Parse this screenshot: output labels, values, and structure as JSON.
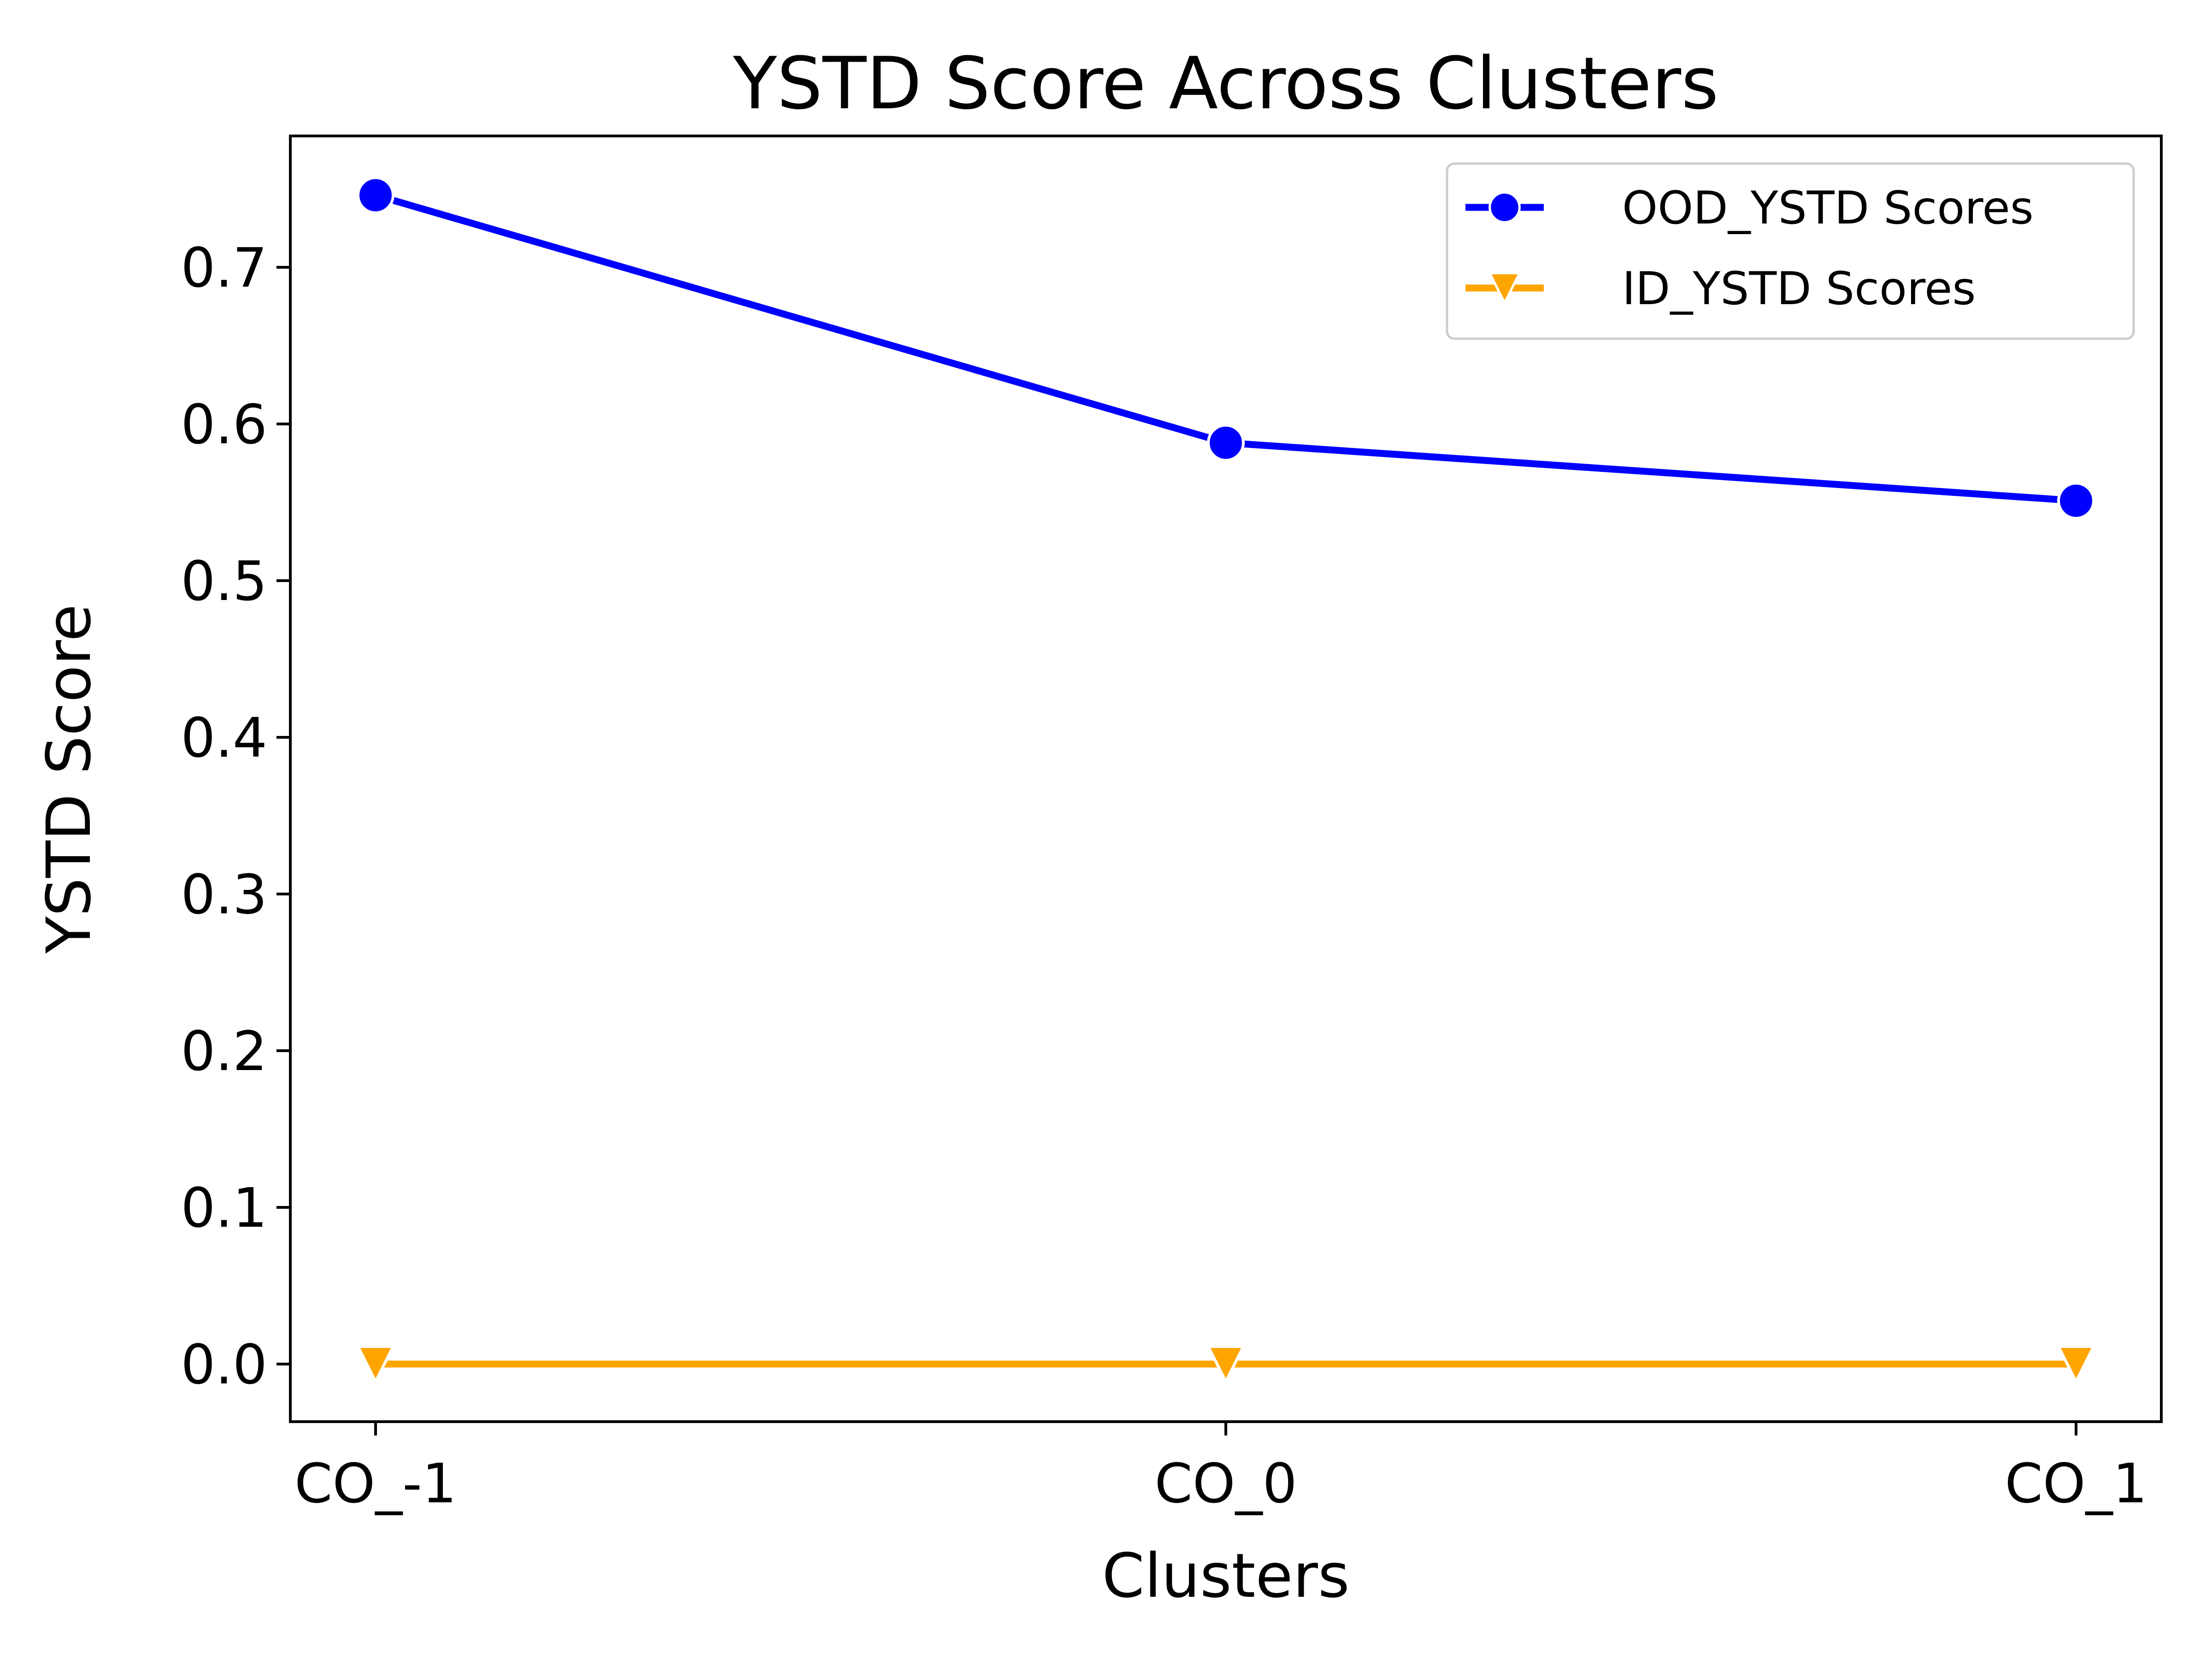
{
  "chart_data": {
    "type": "line",
    "title": "YSTD Score Across Clusters",
    "xlabel": "Clusters",
    "ylabel": "YSTD Score",
    "categories": [
      "CO_-1",
      "CO_0",
      "CO_1"
    ],
    "ylim": [
      -0.037,
      0.785
    ],
    "yticks": [
      {
        "value": 0.0,
        "label": "0.0"
      },
      {
        "value": 0.1,
        "label": "0.1"
      },
      {
        "value": 0.2,
        "label": "0.2"
      },
      {
        "value": 0.3,
        "label": "0.3"
      },
      {
        "value": 0.4,
        "label": "0.4"
      },
      {
        "value": 0.5,
        "label": "0.5"
      },
      {
        "value": 0.6,
        "label": "0.6"
      },
      {
        "value": 0.7,
        "label": "0.7"
      }
    ],
    "grid": false,
    "legend_position": "top-right",
    "series": [
      {
        "name": "OOD_YSTD Scores",
        "values": [
          0.746,
          0.588,
          0.551
        ],
        "color": "#0000ff",
        "marker": "circle"
      },
      {
        "name": "ID_YSTD Scores",
        "values": [
          0.0,
          0.0,
          0.0
        ],
        "color": "#ffa500",
        "marker": "triangle-down"
      }
    ]
  }
}
